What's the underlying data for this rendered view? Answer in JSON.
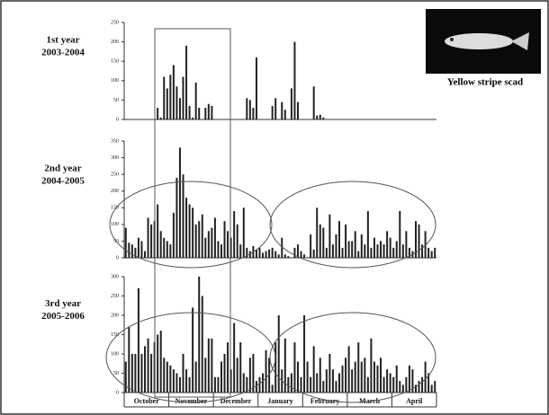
{
  "chart_data": [
    {
      "type": "bar",
      "label": "1st year",
      "period": "2003-2004",
      "color": "#222",
      "ylim": [
        0,
        250
      ],
      "yticks": [
        0,
        50,
        100,
        150,
        200,
        250
      ],
      "values": [
        null,
        null,
        null,
        null,
        null,
        null,
        null,
        null,
        null,
        null,
        30,
        5,
        110,
        80,
        115,
        140,
        85,
        55,
        110,
        190,
        35,
        5,
        95,
        30,
        null,
        30,
        40,
        35,
        null,
        null,
        null,
        null,
        null,
        null,
        null,
        null,
        null,
        null,
        55,
        50,
        30,
        160,
        null,
        null,
        null,
        null,
        35,
        55,
        null,
        45,
        25,
        null,
        80,
        200,
        45,
        null,
        null,
        null,
        null,
        85,
        10,
        12,
        5,
        null,
        null,
        null,
        null,
        null,
        null,
        null,
        null,
        null,
        null,
        null,
        null,
        null,
        null,
        null,
        null,
        null,
        null,
        null,
        null,
        null,
        null,
        null,
        null,
        null,
        null,
        null,
        null,
        null,
        null,
        null,
        null,
        null,
        null,
        null
      ]
    },
    {
      "type": "bar",
      "label": "2nd year",
      "period": "2004-2005",
      "color": "#222",
      "ylim": [
        0,
        350
      ],
      "yticks": [
        0,
        50,
        100,
        150,
        200,
        250,
        300,
        350
      ],
      "values": [
        90,
        45,
        40,
        30,
        60,
        50,
        20,
        120,
        100,
        110,
        160,
        80,
        60,
        50,
        40,
        135,
        240,
        330,
        250,
        180,
        160,
        150,
        100,
        110,
        130,
        60,
        80,
        90,
        120,
        50,
        40,
        110,
        80,
        60,
        140,
        100,
        40,
        150,
        30,
        20,
        35,
        25,
        30,
        15,
        20,
        25,
        30,
        20,
        10,
        60,
        10,
        5,
        null,
        30,
        40,
        20,
        10,
        null,
        70,
        25,
        150,
        100,
        90,
        30,
        130,
        40,
        70,
        110,
        30,
        100,
        50,
        50,
        80,
        20,
        70,
        40,
        140,
        30,
        60,
        40,
        50,
        40,
        80,
        60,
        30,
        50,
        140,
        40,
        80,
        30,
        20,
        110,
        100,
        40,
        80,
        30,
        20,
        30
      ]
    },
    {
      "type": "bar",
      "label": "3rd year",
      "period": "2005-2006",
      "color": "#222",
      "ylim": [
        0,
        300
      ],
      "yticks": [
        0,
        50,
        100,
        150,
        200,
        250,
        300
      ],
      "values": [
        80,
        170,
        100,
        100,
        270,
        100,
        120,
        140,
        100,
        130,
        150,
        160,
        90,
        80,
        70,
        60,
        50,
        40,
        100,
        60,
        40,
        220,
        80,
        300,
        250,
        90,
        140,
        140,
        40,
        40,
        80,
        100,
        130,
        60,
        180,
        90,
        130,
        50,
        40,
        90,
        100,
        30,
        40,
        50,
        110,
        90,
        20,
        130,
        200,
        60,
        140,
        40,
        50,
        130,
        80,
        40,
        200,
        80,
        40,
        120,
        50,
        90,
        30,
        60,
        100,
        60,
        30,
        50,
        70,
        90,
        120,
        60,
        80,
        130,
        80,
        90,
        40,
        140,
        80,
        70,
        90,
        40,
        60,
        50,
        40,
        70,
        30,
        20,
        40,
        70,
        60,
        20,
        30,
        40,
        80,
        50,
        20,
        30
      ],
      "month_labels": [
        "October",
        "November",
        "December",
        "January",
        "February",
        "March",
        "April"
      ]
    }
  ],
  "caption": "Yellow stripe scad"
}
